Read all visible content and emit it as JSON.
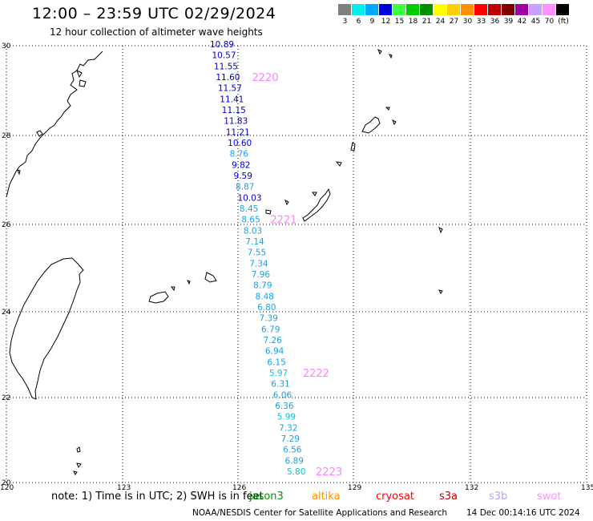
{
  "header": {
    "title": "12:00 – 23:59 UTC 02/29/2024",
    "subtitle": "12 hour collection of altimeter wave heights"
  },
  "colorbar": {
    "unit": "(ft)",
    "levels": [
      {
        "label": "3",
        "color": "#7f7f7f"
      },
      {
        "label": "6",
        "color": "#00eeee"
      },
      {
        "label": "9",
        "color": "#00a8ff"
      },
      {
        "label": "12",
        "color": "#0000e0"
      },
      {
        "label": "15",
        "color": "#40ff40"
      },
      {
        "label": "18",
        "color": "#00cc00"
      },
      {
        "label": "21",
        "color": "#009000"
      },
      {
        "label": "24",
        "color": "#ffff00"
      },
      {
        "label": "27",
        "color": "#ffd000"
      },
      {
        "label": "30",
        "color": "#ff9000"
      },
      {
        "label": "33",
        "color": "#ff0000"
      },
      {
        "label": "36",
        "color": "#c00000"
      },
      {
        "label": "39",
        "color": "#800000"
      },
      {
        "label": "42",
        "color": "#a000a0"
      },
      {
        "label": "45",
        "color": "#c8a0ff"
      },
      {
        "label": "70",
        "color": "#ff90ff"
      },
      {
        "label": "",
        "color": "#000000"
      }
    ]
  },
  "map": {
    "lat_labels": [
      "30",
      "28",
      "26",
      "24",
      "22",
      "20"
    ],
    "lon_labels": [
      "120",
      "123",
      "126",
      "129",
      "132",
      "135"
    ]
  },
  "track": {
    "points": [
      {
        "v": "10.89",
        "c": "#0000cc"
      },
      {
        "v": "10.57",
        "c": "#0000cc"
      },
      {
        "v": "11.55",
        "c": "#0000cc"
      },
      {
        "v": "11.60",
        "c": "#0000cc"
      },
      {
        "v": "11.57",
        "c": "#0000cc"
      },
      {
        "v": "11.41",
        "c": "#0000cc"
      },
      {
        "v": "11.15",
        "c": "#0000cc"
      },
      {
        "v": "11.83",
        "c": "#0000cc"
      },
      {
        "v": "11.21",
        "c": "#0000cc"
      },
      {
        "v": "10.60",
        "c": "#0000cc"
      },
      {
        "v": "8.76",
        "c": "#1a9fe6"
      },
      {
        "v": "9.82",
        "c": "#0000cc"
      },
      {
        "v": "9.59",
        "c": "#0000cc"
      },
      {
        "v": "8.87",
        "c": "#1a9fe6"
      },
      {
        "v": "10.03",
        "c": "#0000cc"
      },
      {
        "v": "8.45",
        "c": "#1a9fe6"
      },
      {
        "v": "8.65",
        "c": "#1a9fe6"
      },
      {
        "v": "8.03",
        "c": "#1a9fe6"
      },
      {
        "v": "7.14",
        "c": "#1a9fe6"
      },
      {
        "v": "7.55",
        "c": "#1a9fe6"
      },
      {
        "v": "7.34",
        "c": "#1a9fe6"
      },
      {
        "v": "7.96",
        "c": "#1a9fe6"
      },
      {
        "v": "8.79",
        "c": "#1a9fe6"
      },
      {
        "v": "8.48",
        "c": "#1a9fe6"
      },
      {
        "v": "6.80",
        "c": "#1a9fe6"
      },
      {
        "v": "7.39",
        "c": "#1a9fe6"
      },
      {
        "v": "6.79",
        "c": "#1a9fe6"
      },
      {
        "v": "7.26",
        "c": "#1a9fe6"
      },
      {
        "v": "6.94",
        "c": "#1a9fe6"
      },
      {
        "v": "6.15",
        "c": "#1a9fe6"
      },
      {
        "v": "5.97",
        "c": "#00c8dc"
      },
      {
        "v": "6.31",
        "c": "#1a9fe6"
      },
      {
        "v": "6.06",
        "c": "#1a9fe6"
      },
      {
        "v": "6.36",
        "c": "#1a9fe6"
      },
      {
        "v": "5.99",
        "c": "#00c8dc"
      },
      {
        "v": "7.32",
        "c": "#1a9fe6"
      },
      {
        "v": "7.29",
        "c": "#1a9fe6"
      },
      {
        "v": "6.56",
        "c": "#1a9fe6"
      },
      {
        "v": "6.89",
        "c": "#1a9fe6"
      },
      {
        "v": "5.80",
        "c": "#00c8dc"
      }
    ],
    "time_labels": [
      "2220",
      "2221",
      "2222",
      "2223"
    ],
    "time_label_color": "#ff80ff"
  },
  "legend": {
    "note": "note:  1) Time is in UTC;  2) SWH is in feet",
    "satellites": [
      {
        "name": "jason3",
        "color": "#009000"
      },
      {
        "name": "altika",
        "color": "#ff9000"
      },
      {
        "name": "cryosat",
        "color": "#ff0000"
      },
      {
        "name": "s3a",
        "color": "#c00000"
      },
      {
        "name": "s3b",
        "color": "#b0a8ff"
      },
      {
        "name": "swot",
        "color": "#ff90ff"
      }
    ]
  },
  "footer": {
    "credit": "NOAA/NESDIS Center for Satellite Applications and Research",
    "timestamp": "14 Dec 00:14:16 UTC 2024"
  }
}
